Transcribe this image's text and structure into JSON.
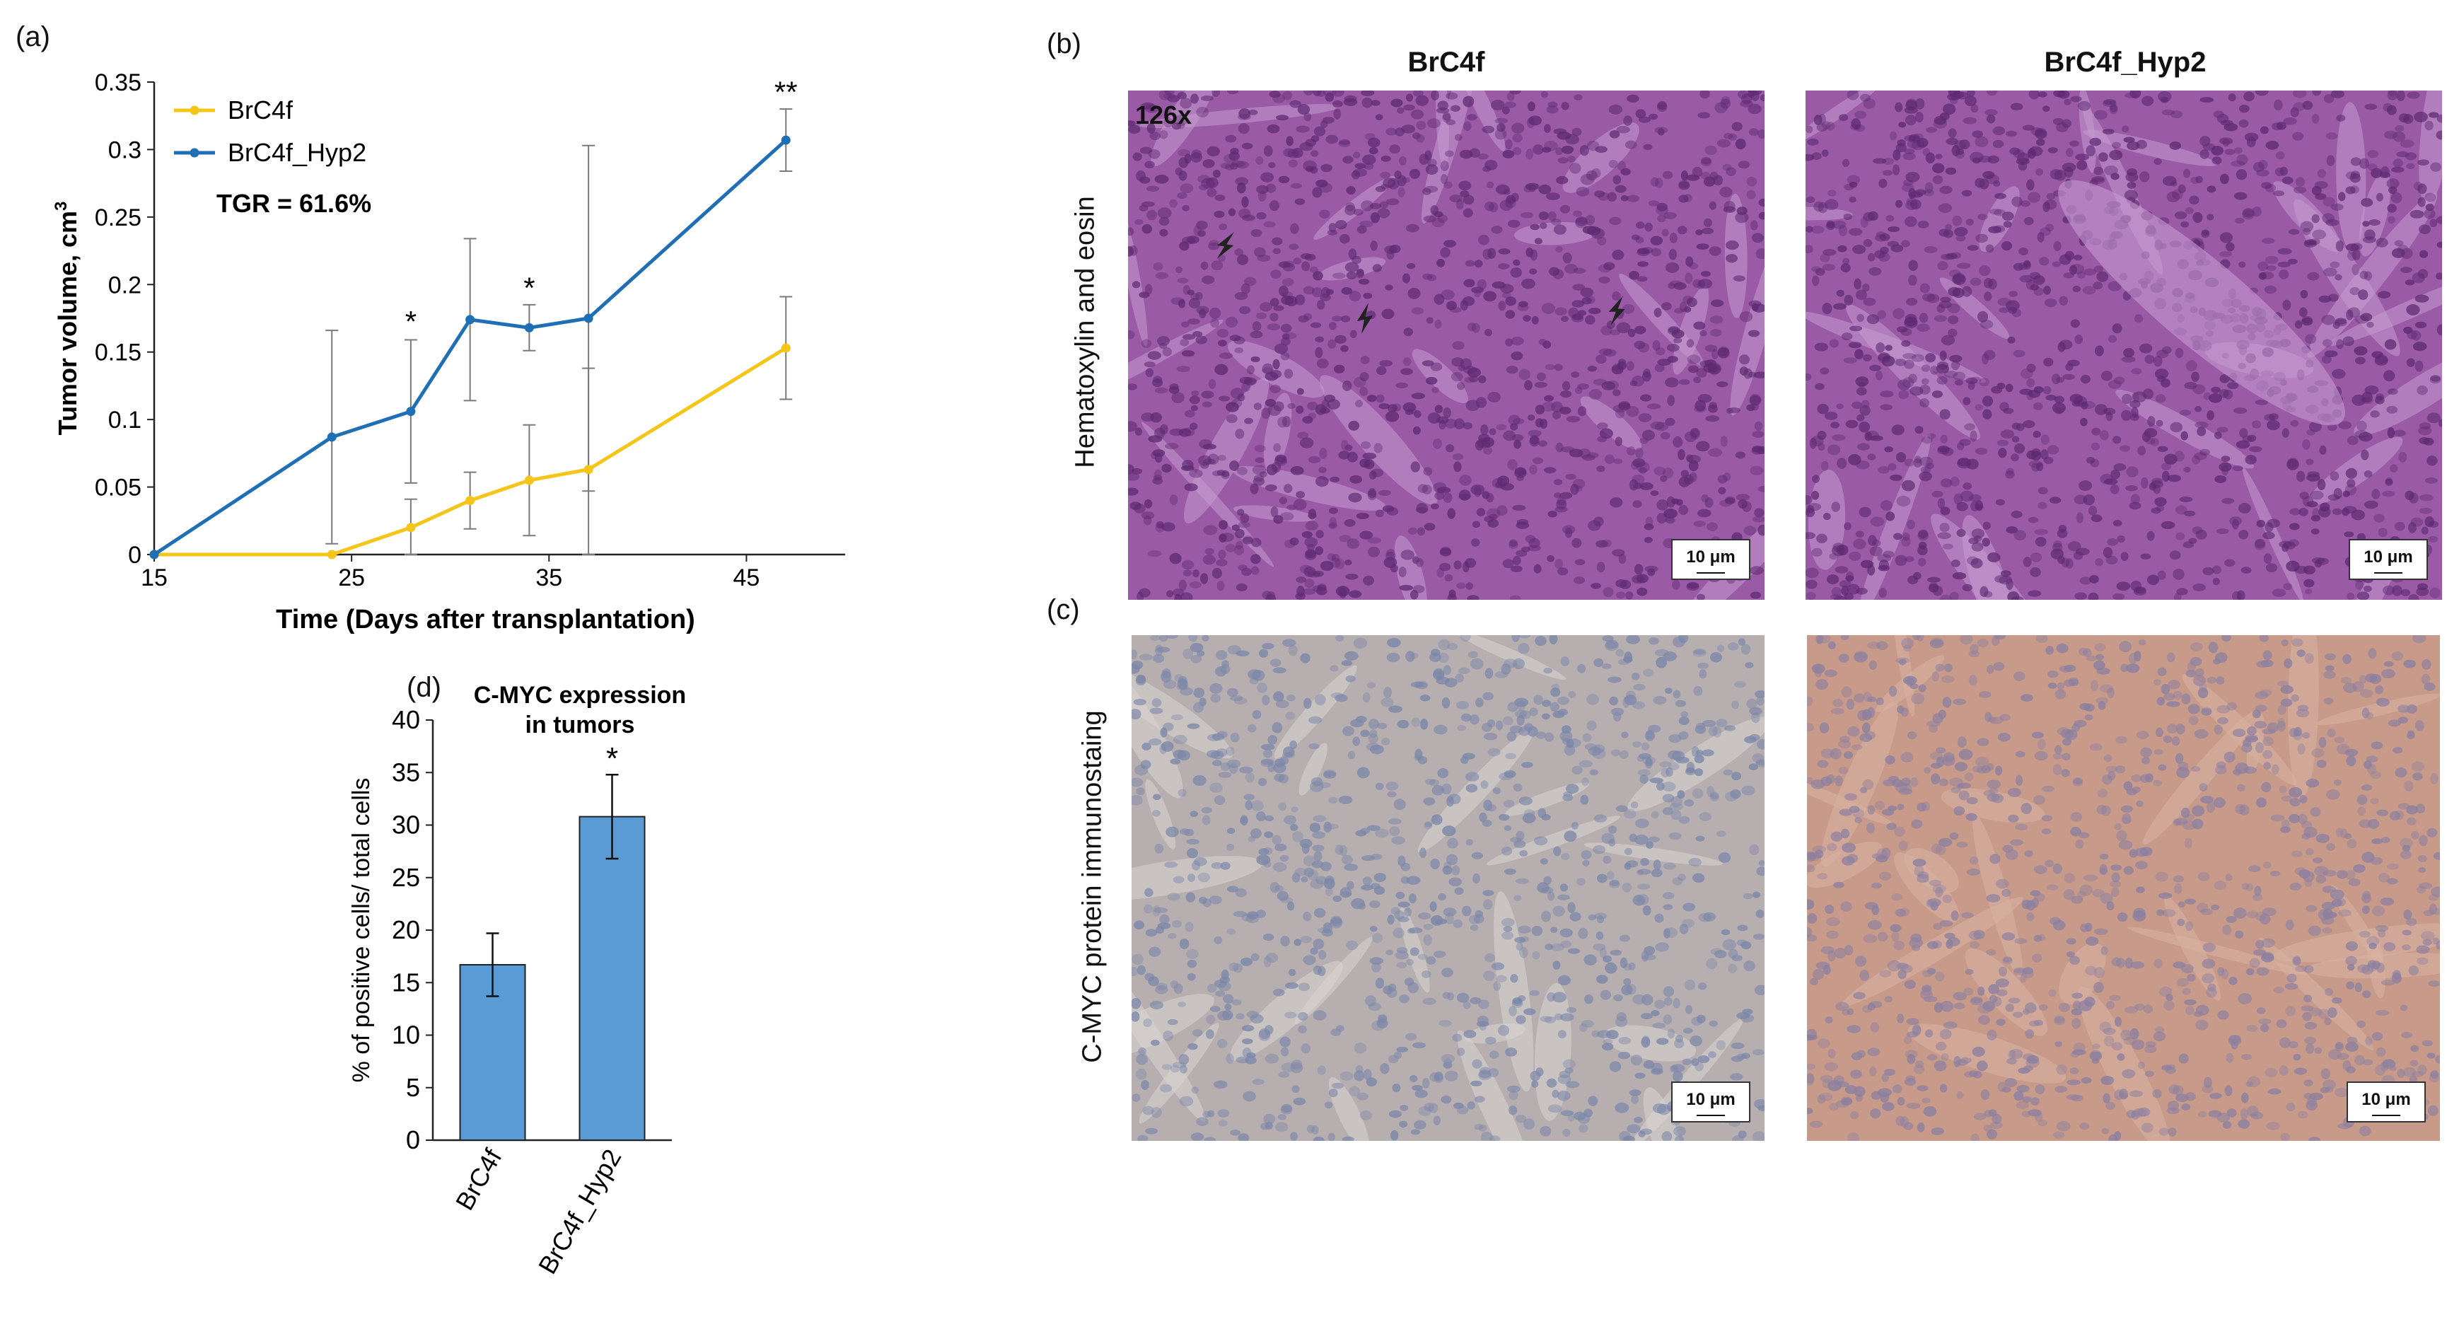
{
  "panels": {
    "a": {
      "label": "(a)"
    },
    "b": {
      "label": "(b)"
    },
    "c": {
      "label": "(c)"
    },
    "d": {
      "label": "(d)"
    }
  },
  "microscopy": {
    "col_titles": [
      "BrC4f",
      "BrC4f_Hyp2"
    ],
    "row_titles": [
      "Hematoxylin and eosin",
      "C-MYC protein immunostaing"
    ],
    "magnification": "126x",
    "scale_label": "10 μm",
    "colors": {
      "he_base": "#9a5aa6",
      "he_dark": "#5e2a72",
      "he_light": "#c79ad0",
      "ihc_base": "#b7aeb0",
      "ihc_nuclei": "#7a86a8",
      "ihc2_base": "#c79a8a",
      "ihc2_nuclei": "#8a7fa0"
    }
  },
  "chart_data": [
    {
      "type": "line",
      "xlabel": "Time (Days after transplantation)",
      "ylabel": "Tumor volume, cm",
      "ylabel_sup": "3",
      "xlim": [
        15,
        50
      ],
      "ylim": [
        0,
        0.35
      ],
      "xticks": [
        "15",
        "25",
        "35",
        "45"
      ],
      "yticks": [
        "0",
        "0.05",
        "0.1",
        "0.15",
        "0.2",
        "0.25",
        "0.3",
        "0.35"
      ],
      "annotation": "TGR = 61.6%",
      "significance": [
        {
          "x": 28,
          "y": 0.165,
          "text": "*"
        },
        {
          "x": 34,
          "y": 0.19,
          "text": "*"
        },
        {
          "x": 47,
          "y": 0.335,
          "text": "**"
        }
      ],
      "legend_position": "top-left",
      "series": [
        {
          "name": "BrC4f",
          "color": "#f5c518",
          "x": [
            15,
            24,
            28,
            31,
            34,
            37,
            47
          ],
          "y": [
            0,
            0,
            0.02,
            0.04,
            0.055,
            0.063,
            0.153
          ],
          "err": [
            0,
            0,
            0.021,
            0.021,
            0.041,
            0.075,
            0.038
          ]
        },
        {
          "name": "BrC4f_Hyp2",
          "color": "#1f6fb7",
          "x": [
            15,
            24,
            28,
            31,
            34,
            37,
            47
          ],
          "y": [
            0,
            0.087,
            0.106,
            0.174,
            0.168,
            0.175,
            0.307
          ],
          "err": [
            0,
            0.079,
            0.053,
            0.06,
            0.017,
            0.128,
            0.023
          ]
        }
      ]
    },
    {
      "type": "bar",
      "title": "C-MYC expression in tumors",
      "title_lines": [
        "C-MYC expression",
        "in tumors"
      ],
      "ylabel": "% of positive cells/ total cells",
      "categories": [
        "BrC4f",
        "BrC4f_Hyp2"
      ],
      "values": [
        16.7,
        30.8
      ],
      "err": [
        3.0,
        4.0
      ],
      "ylim": [
        0,
        40
      ],
      "yticks": [
        "0",
        "5",
        "10",
        "15",
        "20",
        "25",
        "30",
        "35",
        "40"
      ],
      "significance": [
        {
          "category": "BrC4f_Hyp2",
          "text": "*"
        }
      ],
      "color": "#5b9bd5"
    }
  ]
}
